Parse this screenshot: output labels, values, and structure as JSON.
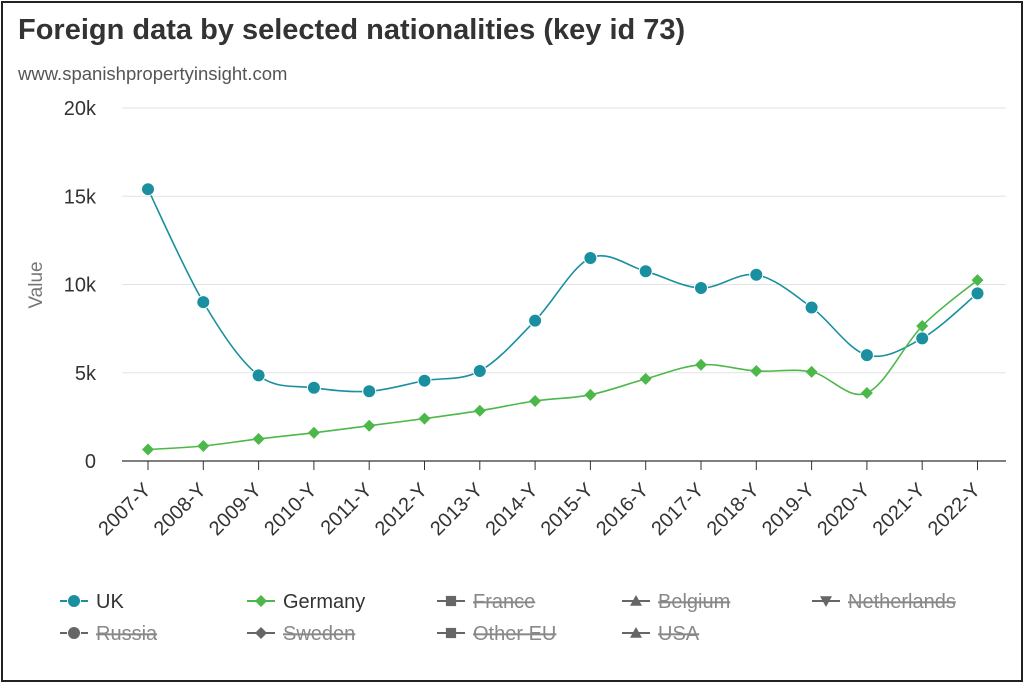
{
  "title": "Foreign data by selected nationalities (key id 73)",
  "subtitle": "www.spanishpropertyinsight.com",
  "colors": {
    "UK": "#1a8fa0",
    "Germany": "#4db84a",
    "hidden": "#666666",
    "grid": "#e3e3e3",
    "axis": "#333333"
  },
  "chart_data": {
    "type": "line",
    "title": "Foreign data by selected nationalities (key id 73)",
    "ylabel": "Value",
    "xlabel": "",
    "ylim": [
      0,
      20000
    ],
    "y_ticks": [
      {
        "value": 0,
        "label": "0"
      },
      {
        "value": 5000,
        "label": "5k"
      },
      {
        "value": 10000,
        "label": "10k"
      },
      {
        "value": 15000,
        "label": "15k"
      },
      {
        "value": 20000,
        "label": "20k"
      }
    ],
    "grid": true,
    "legend_position": "bottom",
    "categories": [
      "2007-Y",
      "2008-Y",
      "2009-Y",
      "2010-Y",
      "2011-Y",
      "2012-Y",
      "2013-Y",
      "2014-Y",
      "2015-Y",
      "2016-Y",
      "2017-Y",
      "2018-Y",
      "2019-Y",
      "2020-Y",
      "2021-Y",
      "2022-Y"
    ],
    "series": [
      {
        "name": "UK",
        "marker": "circle",
        "visible": true,
        "values": [
          15400,
          9000,
          4850,
          4150,
          3950,
          4550,
          5100,
          7950,
          11500,
          10750,
          9800,
          10550,
          8700,
          6000,
          6950,
          9500
        ]
      },
      {
        "name": "Germany",
        "marker": "diamond",
        "visible": true,
        "values": [
          650,
          850,
          1250,
          1600,
          2000,
          2400,
          2850,
          3400,
          3750,
          4650,
          5450,
          5100,
          5050,
          3850,
          7650,
          10250
        ]
      }
    ],
    "legend": [
      {
        "name": "UK",
        "marker": "circle",
        "visible": true
      },
      {
        "name": "Germany",
        "marker": "diamond",
        "visible": true
      },
      {
        "name": "France",
        "marker": "square",
        "visible": false
      },
      {
        "name": "Belgium",
        "marker": "triangle",
        "visible": false
      },
      {
        "name": "Netherlands",
        "marker": "triangle-down",
        "visible": false
      },
      {
        "name": "Russia",
        "marker": "circle",
        "visible": false
      },
      {
        "name": "Sweden",
        "marker": "diamond",
        "visible": false
      },
      {
        "name": "Other EU",
        "marker": "square",
        "visible": false
      },
      {
        "name": "USA",
        "marker": "triangle",
        "visible": false
      }
    ]
  }
}
